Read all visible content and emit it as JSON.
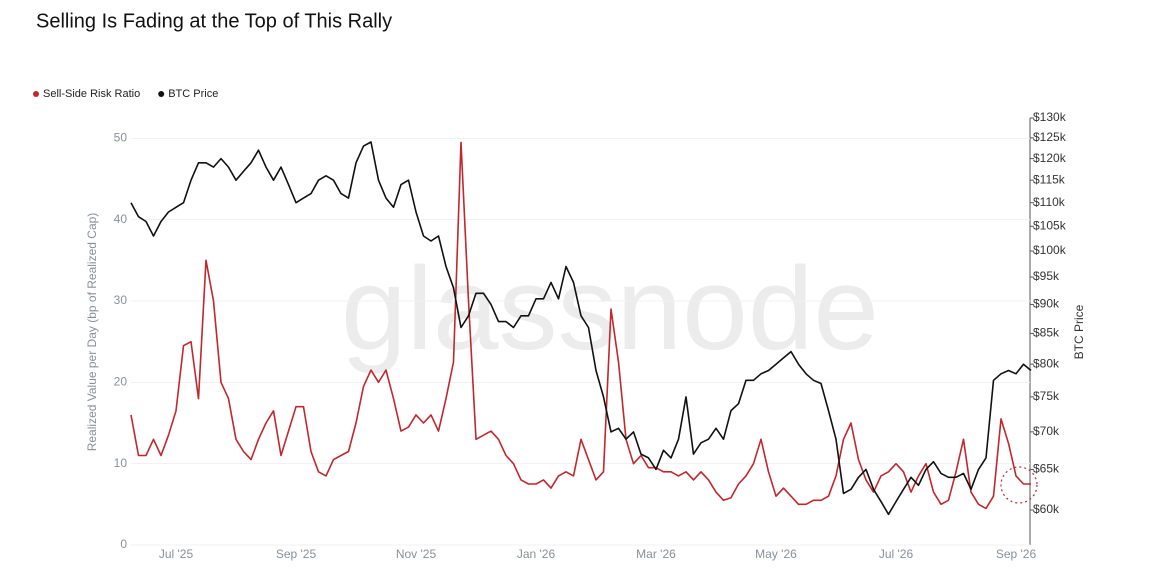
{
  "chart_data": {
    "type": "line",
    "title": "Selling Is Fading at the Top of This Rally",
    "watermark": "glassnode",
    "ylabel": "Realized Value per Day (bp of Realized Cap)",
    "y2label": "BTC Price",
    "legend": "top-left",
    "grid": true,
    "y2log": true,
    "categories": [
      null,
      null,
      null,
      null,
      null,
      null,
      "Jul '25",
      null,
      null,
      null,
      null,
      null,
      null,
      null,
      null,
      null,
      null,
      null,
      null,
      null,
      null,
      null,
      "Sep '25",
      null,
      null,
      null,
      null,
      null,
      null,
      null,
      null,
      null,
      null,
      null,
      null,
      null,
      null,
      null,
      "Nov '25",
      null,
      null,
      null,
      null,
      null,
      null,
      null,
      null,
      null,
      null,
      null,
      null,
      null,
      null,
      null,
      "Jan '26",
      null,
      null,
      null,
      null,
      null,
      null,
      null,
      null,
      null,
      null,
      null,
      null,
      null,
      null,
      null,
      "Mar '26",
      null,
      null,
      null,
      null,
      null,
      null,
      null,
      null,
      null,
      null,
      null,
      null,
      null,
      null,
      null,
      "May '26",
      null,
      null,
      null,
      null,
      null,
      null,
      null,
      null,
      null,
      null,
      null,
      null,
      null,
      null,
      null,
      "Jul '26",
      null,
      null,
      null,
      null,
      null,
      null,
      null,
      null,
      null,
      null,
      null,
      null,
      null,
      null,
      null,
      "Sep '26",
      null,
      null
    ],
    "ylim": [
      0,
      52.5
    ],
    "yticks": [
      0,
      10,
      20,
      30,
      40,
      50
    ],
    "y2lim": [
      56000,
      130000
    ],
    "y2ticks": [
      {
        "value": 60000,
        "label": "$60k"
      },
      {
        "value": 65000,
        "label": "$65k"
      },
      {
        "value": 70000,
        "label": "$70k"
      },
      {
        "value": 75000,
        "label": "$75k"
      },
      {
        "value": 80000,
        "label": "$80k"
      },
      {
        "value": 85000,
        "label": "$85k"
      },
      {
        "value": 90000,
        "label": "$90k"
      },
      {
        "value": 95000,
        "label": "$95k"
      },
      {
        "value": 100000,
        "label": "$100k"
      },
      {
        "value": 105000,
        "label": "$105k"
      },
      {
        "value": 110000,
        "label": "$110k"
      },
      {
        "value": 115000,
        "label": "$115k"
      },
      {
        "value": 120000,
        "label": "$120k"
      },
      {
        "value": 125000,
        "label": "$125k"
      },
      {
        "value": 130000,
        "label": "$130k"
      }
    ],
    "series": [
      {
        "name": "Sell-Side Risk Ratio",
        "color": "#c1272d",
        "values": [
          16,
          11,
          11,
          13,
          11,
          13.5,
          16.5,
          24.5,
          25,
          18,
          35,
          30,
          20,
          18,
          13,
          11.5,
          10.5,
          13,
          15,
          16.5,
          11,
          14,
          17,
          17,
          11.5,
          9,
          8.5,
          10.5,
          11,
          11.5,
          15,
          19.5,
          21.5,
          20,
          21.5,
          18,
          14,
          14.5,
          16,
          15,
          16,
          14,
          18,
          22.5,
          49.5,
          30,
          13,
          13.5,
          14,
          13,
          11,
          10,
          8,
          7.5,
          7.5,
          8,
          7,
          8.5,
          9,
          8.5,
          13,
          10.5,
          8,
          9,
          29,
          22.5,
          13,
          10,
          11,
          9.5,
          9.5,
          9,
          9,
          8.5,
          9,
          8,
          9,
          8,
          6.5,
          5.5,
          5.8,
          7.5,
          8.5,
          10,
          13,
          9,
          6,
          7,
          6,
          5,
          5,
          5.5,
          5.5,
          6,
          8.5,
          13,
          15,
          10.5,
          8,
          6.5,
          8.5,
          9,
          10,
          9,
          6.5,
          8.5,
          10,
          6.5,
          5,
          5.5,
          9,
          13,
          6.5,
          5,
          4.5,
          6,
          15.5,
          12.5,
          8.5,
          7.5,
          7.5
        ]
      },
      {
        "name": "BTC Price",
        "color": "#111111",
        "axis": "y2",
        "values": [
          110000,
          107000,
          106000,
          103000,
          106000,
          108000,
          109000,
          110000,
          115000,
          119000,
          119000,
          118000,
          120000,
          118000,
          115000,
          117000,
          119000,
          122000,
          118000,
          115000,
          118000,
          114000,
          110000,
          111000,
          112000,
          115000,
          116000,
          115000,
          112000,
          111000,
          119000,
          123000,
          124000,
          115000,
          111000,
          109000,
          114000,
          115000,
          108000,
          103000,
          102000,
          103000,
          97000,
          93000,
          86000,
          88000,
          92000,
          92000,
          90000,
          87000,
          87000,
          86000,
          88000,
          88000,
          91000,
          91000,
          94000,
          91000,
          97000,
          94000,
          88000,
          86000,
          79000,
          75000,
          70000,
          70500,
          69000,
          70000,
          67000,
          66500,
          65000,
          67500,
          66500,
          69000,
          75000,
          67000,
          68500,
          69000,
          70500,
          69000,
          73000,
          74000,
          77500,
          77500,
          78500,
          79000,
          80000,
          81000,
          82000,
          80000,
          78500,
          77500,
          77000,
          73000,
          69000,
          62000,
          62500,
          64000,
          65000,
          62500,
          61000,
          59500,
          61000,
          62500,
          64000,
          63000,
          65000,
          66000,
          64500,
          64000,
          64000,
          64500,
          62500,
          65000,
          66500,
          77500,
          78500,
          79000,
          78500,
          80000,
          79000
        ]
      }
    ]
  }
}
